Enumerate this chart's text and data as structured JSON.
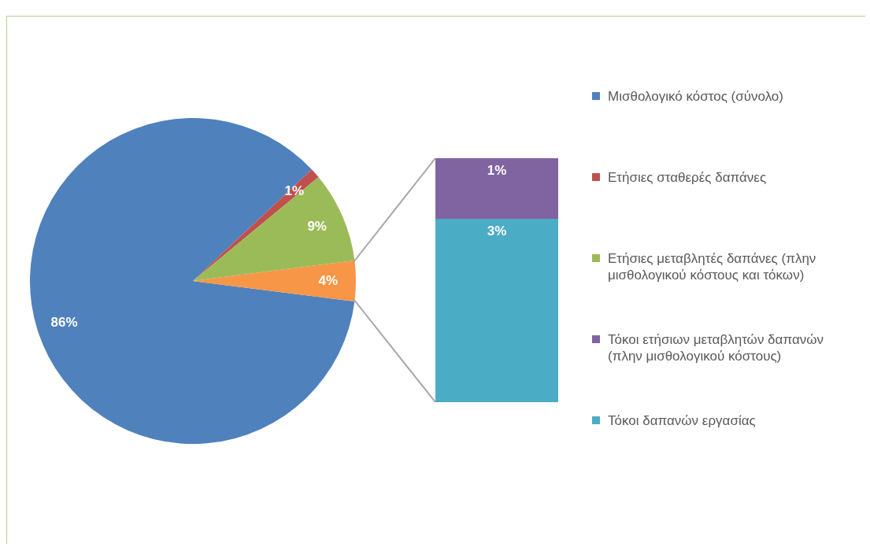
{
  "chart_data": [
    {
      "type": "pie",
      "categories": [
        "Μισθολογικό κόστος (σύνολο)",
        "Ετήσιες σταθερές δαπάνες",
        "Ετήσιες μεταβλητές δαπάνες (πλην μισθολογικού κόστους και τόκων)",
        null
      ],
      "values": [
        86,
        1,
        9,
        4
      ],
      "value_labels": [
        "86%",
        "1%",
        "9%",
        "4%"
      ],
      "colors": [
        "#4f81bd",
        "#c0504d",
        "#9bbb59",
        "#f79646"
      ],
      "legend": "right"
    },
    {
      "type": "bar",
      "stacked": true,
      "categories": [
        null
      ],
      "tick_labels": false,
      "legend": "right",
      "series": [
        {
          "name": "Τόκοι δαπανών εργασίας",
          "color": "#4bacc6",
          "values": [
            3
          ],
          "value_labels": [
            "3%"
          ]
        },
        {
          "name": "Τόκοι ετήσιων μεταβλητών δαπανών (πλην μισθολογικού κόστους)",
          "color": "#8064a2",
          "values": [
            1
          ],
          "value_labels": [
            "1%"
          ]
        }
      ]
    }
  ]
}
